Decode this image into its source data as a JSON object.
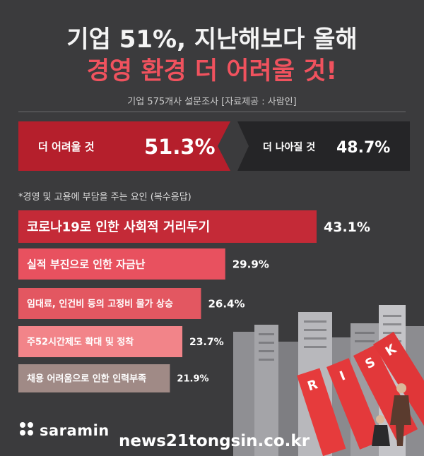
{
  "header": {
    "title_line1": "기업 51%, 지난해보다 올해",
    "title_line2": "경영 환경 더 어려울 것!",
    "subtitle": "기업 575개사 설문조사 [자료제공 : 사람인]"
  },
  "chart_data": [
    {
      "type": "bar",
      "orientation": "horizontal-split",
      "categories": [
        "더 어려울 것",
        "더 나아질 것"
      ],
      "values": [
        51.3,
        48.7
      ],
      "value_labels": [
        "51.3%",
        "48.7%"
      ],
      "unit": "%"
    },
    {
      "type": "bar",
      "orientation": "horizontal",
      "title": "*경영 및 고용에 부담을 주는 요인 (복수응답)",
      "categories": [
        "코로나19로 인한 사회적 거리두기",
        "실적 부진으로 인한 자금난",
        "임대료, 인건비 등의 고정비 물가 상승",
        "주52시간제도 확대 및 정착",
        "채용 어려움으로 인한 인력부족"
      ],
      "values": [
        43.1,
        29.9,
        26.4,
        23.7,
        21.9
      ],
      "value_labels": [
        "43.1%",
        "29.9%",
        "26.4%",
        "23.7%",
        "21.9%"
      ],
      "unit": "%",
      "colors": [
        "#c42a37",
        "#e8515f",
        "#e35761",
        "#f28489",
        "#a08a86"
      ]
    }
  ],
  "illustration": {
    "risk_letters": [
      "R",
      "I",
      "S",
      "K"
    ]
  },
  "footer": {
    "logo_text": "saramin",
    "source_url": "news21tongsin.co.kr"
  },
  "colors": {
    "background": "#3b3b3d",
    "accent_red": "#f0525e",
    "worse_panel": "#b51f2c",
    "better_panel": "#252527"
  }
}
